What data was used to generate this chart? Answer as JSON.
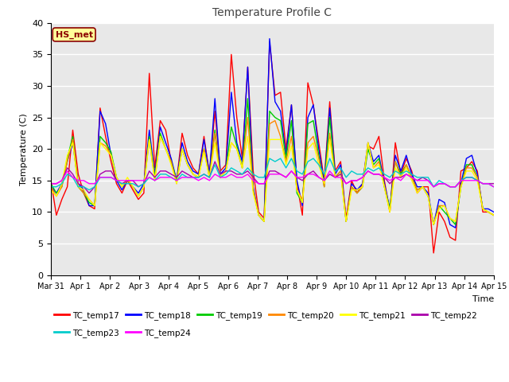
{
  "title": "Temperature Profile C",
  "xlabel": "Time",
  "ylabel": "Temperature (C)",
  "ylim": [
    0,
    40
  ],
  "annotation": "HS_met",
  "series_colors": {
    "TC_temp17": "#ff0000",
    "TC_temp18": "#0000ff",
    "TC_temp19": "#00cc00",
    "TC_temp20": "#ff8800",
    "TC_temp21": "#ffff00",
    "TC_temp22": "#aa00aa",
    "TC_temp23": "#00cccc",
    "TC_temp24": "#ff00ff"
  },
  "xtick_labels": [
    "Mar 31",
    "Apr 1",
    "Apr 2",
    "Apr 3",
    "Apr 4",
    "Apr 5",
    "Apr 6",
    "Apr 7",
    "Apr 8",
    "Apr 9",
    "Apr 10",
    "Apr 11",
    "Apr 12",
    "Apr 13",
    "Apr 14",
    "Apr 15"
  ],
  "background_color": "#e8e8e8",
  "grid_color": "#ffffff",
  "TC_temp17": [
    15.0,
    9.5,
    12.0,
    14.0,
    23.0,
    16.0,
    13.0,
    11.0,
    10.5,
    26.5,
    22.0,
    18.0,
    14.5,
    13.0,
    15.0,
    13.5,
    12.0,
    13.0,
    32.0,
    17.0,
    24.5,
    23.0,
    18.0,
    15.0,
    22.5,
    19.0,
    17.0,
    16.0,
    22.0,
    16.0,
    26.0,
    16.5,
    17.5,
    35.0,
    25.0,
    18.5,
    33.0,
    16.5,
    10.0,
    9.0,
    37.0,
    28.5,
    29.0,
    20.0,
    27.0,
    14.5,
    9.5,
    30.5,
    27.0,
    21.0,
    15.0,
    27.5,
    16.5,
    18.0,
    9.0,
    15.0,
    13.0,
    14.5,
    20.5,
    20.0,
    22.0,
    15.0,
    10.0,
    21.0,
    16.0,
    18.5,
    16.5,
    13.0,
    14.0,
    14.0,
    3.5,
    10.0,
    8.5,
    6.0,
    5.5,
    16.5,
    17.0,
    18.0,
    16.5,
    10.0,
    10.0,
    9.5
  ],
  "TC_temp18": [
    14.0,
    13.0,
    14.5,
    18.0,
    21.0,
    14.5,
    13.5,
    11.0,
    11.0,
    26.0,
    24.0,
    19.0,
    15.0,
    13.5,
    15.0,
    14.0,
    13.0,
    14.5,
    23.0,
    16.0,
    23.5,
    21.0,
    18.5,
    15.0,
    21.0,
    18.0,
    16.5,
    16.0,
    21.5,
    16.0,
    28.0,
    16.0,
    17.0,
    29.0,
    21.0,
    18.0,
    33.0,
    14.0,
    9.5,
    8.5,
    37.5,
    27.5,
    26.0,
    19.0,
    27.0,
    15.0,
    11.0,
    25.0,
    27.0,
    20.0,
    14.5,
    26.5,
    16.0,
    17.5,
    8.5,
    14.5,
    13.5,
    14.5,
    21.0,
    18.0,
    19.0,
    14.5,
    10.5,
    19.0,
    16.5,
    19.0,
    16.0,
    14.0,
    14.0,
    13.0,
    8.0,
    12.0,
    11.5,
    8.0,
    7.5,
    14.5,
    18.5,
    19.0,
    16.0,
    10.5,
    10.5,
    10.0
  ],
  "TC_temp19": [
    14.5,
    13.0,
    14.0,
    18.5,
    22.0,
    14.0,
    13.0,
    11.5,
    11.0,
    22.0,
    21.0,
    19.5,
    15.5,
    14.0,
    15.0,
    14.0,
    12.5,
    14.0,
    22.0,
    15.5,
    22.5,
    20.0,
    18.0,
    15.0,
    20.0,
    17.5,
    16.0,
    15.5,
    20.0,
    15.5,
    23.0,
    15.5,
    16.5,
    23.5,
    20.5,
    17.0,
    28.0,
    13.5,
    9.5,
    8.5,
    26.0,
    25.0,
    24.5,
    18.5,
    24.5,
    13.0,
    11.5,
    24.0,
    24.5,
    19.0,
    14.0,
    25.0,
    15.5,
    16.5,
    8.5,
    14.0,
    13.0,
    14.0,
    20.0,
    17.5,
    18.5,
    14.0,
    10.5,
    18.0,
    16.0,
    17.5,
    15.5,
    13.5,
    14.0,
    12.5,
    8.0,
    11.0,
    10.0,
    9.0,
    8.0,
    14.0,
    17.5,
    17.5,
    15.5,
    10.5,
    10.0,
    9.5
  ],
  "TC_temp20": [
    14.0,
    12.5,
    14.0,
    18.0,
    21.5,
    14.0,
    13.0,
    12.0,
    11.0,
    21.0,
    20.5,
    19.0,
    15.5,
    14.0,
    15.0,
    14.0,
    12.5,
    14.0,
    21.5,
    15.0,
    22.0,
    20.0,
    18.0,
    14.5,
    20.0,
    17.5,
    16.0,
    15.5,
    20.0,
    15.5,
    22.5,
    15.5,
    16.5,
    21.0,
    20.0,
    17.0,
    25.0,
    13.5,
    9.5,
    8.5,
    24.0,
    24.5,
    22.0,
    18.0,
    22.0,
    13.5,
    12.0,
    21.0,
    22.0,
    18.5,
    14.0,
    22.5,
    15.5,
    16.5,
    8.5,
    14.0,
    13.0,
    14.0,
    21.0,
    17.0,
    18.0,
    14.0,
    10.0,
    18.0,
    15.5,
    17.5,
    15.5,
    13.5,
    14.0,
    12.5,
    8.0,
    11.0,
    11.0,
    9.0,
    8.5,
    14.0,
    17.0,
    17.0,
    15.5,
    10.5,
    10.0,
    9.5
  ],
  "TC_temp21": [
    13.5,
    12.5,
    14.5,
    19.0,
    21.0,
    14.0,
    13.5,
    12.0,
    11.0,
    21.0,
    20.0,
    19.0,
    15.5,
    14.0,
    15.5,
    14.0,
    12.5,
    14.0,
    21.5,
    15.0,
    22.0,
    20.0,
    17.5,
    14.5,
    20.0,
    17.5,
    16.0,
    15.5,
    19.5,
    15.5,
    21.0,
    15.5,
    16.5,
    21.0,
    20.0,
    17.0,
    22.0,
    13.0,
    9.5,
    8.5,
    21.5,
    21.5,
    21.5,
    17.5,
    20.5,
    13.5,
    11.5,
    20.0,
    21.0,
    17.5,
    14.5,
    21.5,
    15.5,
    16.0,
    8.5,
    13.5,
    13.5,
    14.0,
    21.0,
    17.0,
    17.5,
    14.0,
    10.0,
    17.0,
    15.5,
    17.0,
    15.0,
    13.0,
    14.0,
    12.5,
    8.0,
    10.5,
    11.0,
    9.0,
    8.5,
    14.0,
    16.5,
    16.5,
    15.0,
    10.5,
    10.0,
    9.5
  ],
  "TC_temp22": [
    14.5,
    14.5,
    15.0,
    17.0,
    16.0,
    14.5,
    14.0,
    13.0,
    14.0,
    16.0,
    16.5,
    16.5,
    15.0,
    14.5,
    15.0,
    15.0,
    14.0,
    14.5,
    16.5,
    15.5,
    16.5,
    16.5,
    16.0,
    15.5,
    16.5,
    16.0,
    15.5,
    15.5,
    16.0,
    15.5,
    18.0,
    16.0,
    16.5,
    16.5,
    16.0,
    16.0,
    16.5,
    15.5,
    14.5,
    14.5,
    16.5,
    16.5,
    16.0,
    15.5,
    16.5,
    15.5,
    15.0,
    16.0,
    16.5,
    15.5,
    15.0,
    16.0,
    15.5,
    16.0,
    14.5,
    15.0,
    15.0,
    15.5,
    16.5,
    16.0,
    16.0,
    15.5,
    14.5,
    15.5,
    15.5,
    16.0,
    15.5,
    15.0,
    15.5,
    15.0,
    14.0,
    14.5,
    14.5,
    14.0,
    14.0,
    15.0,
    15.5,
    15.5,
    15.0,
    14.5,
    14.5,
    14.5
  ],
  "TC_temp23": [
    14.0,
    14.0,
    14.5,
    16.0,
    15.5,
    14.0,
    14.0,
    13.5,
    14.0,
    15.5,
    15.5,
    15.5,
    15.0,
    14.5,
    14.5,
    14.5,
    14.0,
    14.5,
    15.5,
    15.0,
    16.0,
    16.0,
    15.5,
    15.0,
    16.0,
    15.5,
    15.5,
    15.5,
    16.0,
    15.5,
    17.5,
    15.5,
    16.0,
    17.0,
    16.5,
    16.0,
    17.0,
    16.0,
    15.5,
    15.5,
    18.5,
    18.0,
    18.5,
    17.0,
    18.5,
    16.5,
    16.0,
    18.0,
    18.5,
    17.5,
    16.0,
    18.5,
    16.5,
    17.0,
    15.5,
    16.5,
    16.0,
    16.0,
    17.0,
    16.5,
    17.0,
    16.0,
    15.5,
    16.5,
    16.0,
    16.5,
    16.0,
    15.5,
    15.5,
    15.5,
    14.0,
    15.0,
    14.5,
    14.0,
    14.0,
    15.0,
    15.5,
    15.5,
    15.0,
    14.5,
    14.5,
    14.0
  ],
  "TC_temp24": [
    14.5,
    14.5,
    15.0,
    16.5,
    15.5,
    15.0,
    15.0,
    14.5,
    14.5,
    15.5,
    15.5,
    15.5,
    15.0,
    15.0,
    15.0,
    15.0,
    15.0,
    15.0,
    15.5,
    15.0,
    15.5,
    15.5,
    15.5,
    15.0,
    15.5,
    15.5,
    15.5,
    15.0,
    15.5,
    15.0,
    16.0,
    15.5,
    15.5,
    16.0,
    15.5,
    15.5,
    16.0,
    15.0,
    14.5,
    14.5,
    16.0,
    16.0,
    16.0,
    15.5,
    16.5,
    15.5,
    15.5,
    16.0,
    16.0,
    15.5,
    15.0,
    16.5,
    15.5,
    15.5,
    14.5,
    15.0,
    15.0,
    15.5,
    16.5,
    16.0,
    16.0,
    15.5,
    15.0,
    15.5,
    15.0,
    16.0,
    15.5,
    15.0,
    15.0,
    15.0,
    14.0,
    14.5,
    14.5,
    14.0,
    14.0,
    15.0,
    15.0,
    15.0,
    15.0,
    14.5,
    14.5,
    14.0
  ]
}
